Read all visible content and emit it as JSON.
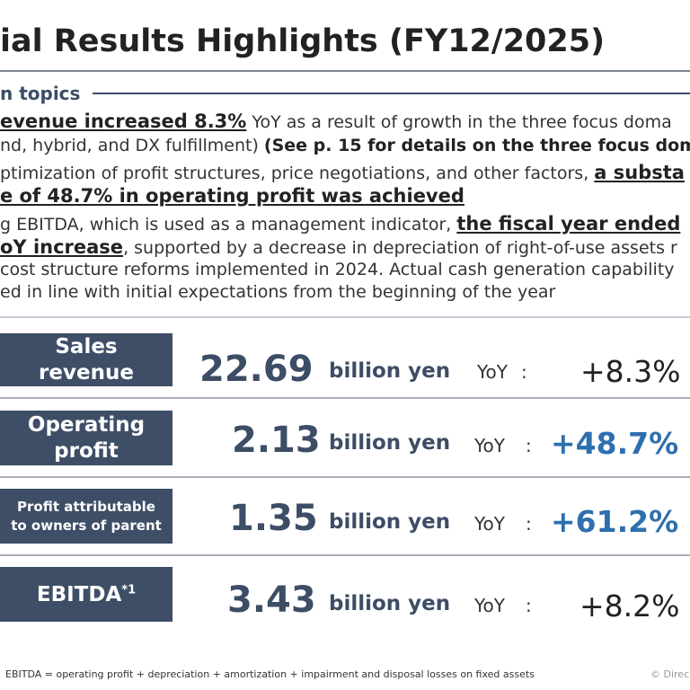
{
  "title": "ial Results Highlights (FY12/2025)",
  "section_heading": "n topics",
  "paragraph1": {
    "line1_bold": "evenue increased 8.3%",
    "line1_rest": " YoY as a result of growth in the three focus doma",
    "line2_text": "nd, hybrid, and DX fulfillment) ",
    "line2_bold": "(See p. 15 for details on the three focus doma"
  },
  "paragraph2": {
    "line1_text": "ptimization of profit structures, price negotiations, and other factors, ",
    "line1_bold": "a substa",
    "line2_bold": "e of 48.7% in operating profit was achieved"
  },
  "paragraph3": {
    "line1_text": "g EBITDA, which is used as a management indicator, ",
    "line1_bold": "the fiscal year ended",
    "line2_bold": "oY increase",
    "line2_rest": ", supported by a decrease in depreciation of right-of-use assets r",
    "line3": " cost structure reforms implemented in 2024. Actual cash generation capability",
    "line4": "ed in line with initial expectations from the beginning of the year"
  },
  "metrics": [
    {
      "label_line1": "Sales",
      "label_line2": "revenue",
      "value": "22.69",
      "unit": "billion yen",
      "yoy_label": "YoY",
      "colon": ":",
      "change": "+8.3%"
    },
    {
      "label_line1": "Operating",
      "label_line2": "profit",
      "value": "2.13",
      "unit": "billion yen",
      "yoy_label": "YoY",
      "colon": ":",
      "change": "+48.7%"
    },
    {
      "label_line1": "Profit attributable",
      "label_line2": "to owners of parent",
      "value": "1.35",
      "unit": "billion yen",
      "yoy_label": "YoY",
      "colon": ":",
      "change": "+61.2%"
    },
    {
      "label_line1": "EBITDA",
      "label_sup": "*1",
      "value": "3.43",
      "unit": "billion yen",
      "yoy_label": "YoY",
      "colon": ":",
      "change": "+8.2%"
    }
  ],
  "footnote": "EBITDA = operating profit + depreciation + amortization + impairment and disposal losses on fixed assets",
  "copyright": "© Direc",
  "colors": {
    "navy": "#3e4e67",
    "accent_blue": "#2e6fae"
  }
}
